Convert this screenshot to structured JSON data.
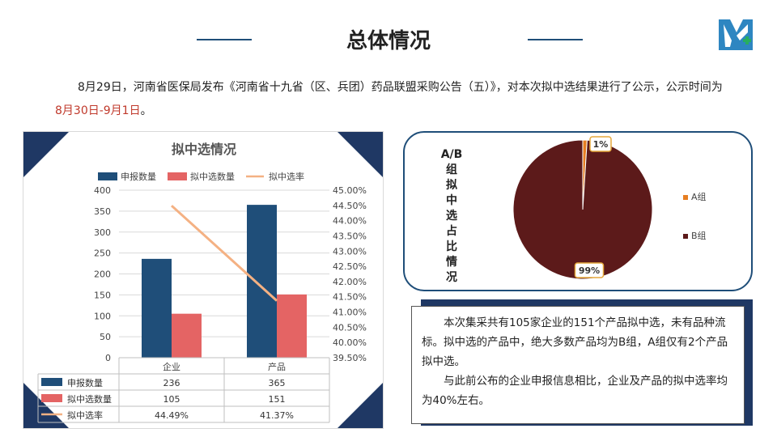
{
  "page_title": "总体情况",
  "intro": {
    "text1": "8月29日，河南省医保局发布《河南省十九省（区、兵团）药品联盟采购公告（五）》，对本次拟中选结果进行了公示，公示时间为",
    "date_range": "8月30日-9月1日",
    "text2": "。"
  },
  "colors": {
    "bar_declared": "#1f4e79",
    "bar_selected": "#e46464",
    "line_rate": "#f4b183",
    "pie_a": "#e67e22",
    "pie_b": "#5c1a1a",
    "frame_corner": "#1f3864"
  },
  "chart_data": [
    {
      "type": "bar",
      "title": "拟中选情况",
      "categories": [
        "企业",
        "产品"
      ],
      "series": [
        {
          "name": "申报数量",
          "values": [
            236,
            365
          ],
          "axis": "left",
          "display": [
            "236",
            "365"
          ]
        },
        {
          "name": "拟中选数量",
          "values": [
            105,
            151
          ],
          "axis": "left",
          "display": [
            "105",
            "151"
          ]
        },
        {
          "name": "拟中选率",
          "values": [
            44.49,
            41.37
          ],
          "axis": "right",
          "type": "line",
          "display": [
            "44.49%",
            "41.37%"
          ]
        }
      ],
      "ylim": [
        0,
        400
      ],
      "yticks": [
        "0",
        "50",
        "100",
        "150",
        "200",
        "250",
        "300",
        "350",
        "400"
      ],
      "y2lim": [
        39.5,
        45.0
      ],
      "y2ticks": [
        "39.50%",
        "40.00%",
        "40.50%",
        "41.00%",
        "41.50%",
        "42.00%",
        "42.50%",
        "43.00%",
        "43.50%",
        "44.00%",
        "44.50%",
        "45.00%"
      ],
      "legend": "top",
      "data_table": true
    },
    {
      "type": "pie",
      "title": "A/B组拟中选占比情况",
      "labels": [
        "A组",
        "B组"
      ],
      "values": [
        1,
        99
      ],
      "data_labels": [
        "1%",
        "99%"
      ],
      "legend": "right"
    }
  ],
  "note": {
    "p1": "本次集采共有105家企业的151个产品拟中选，未有品种流标。拟中选的产品中，绝大多数产品均为B组，A组仅有2个产品拟中选。",
    "p2": "与此前公布的企业申报信息相比，企业及产品的拟中选率均为40%左右。"
  }
}
